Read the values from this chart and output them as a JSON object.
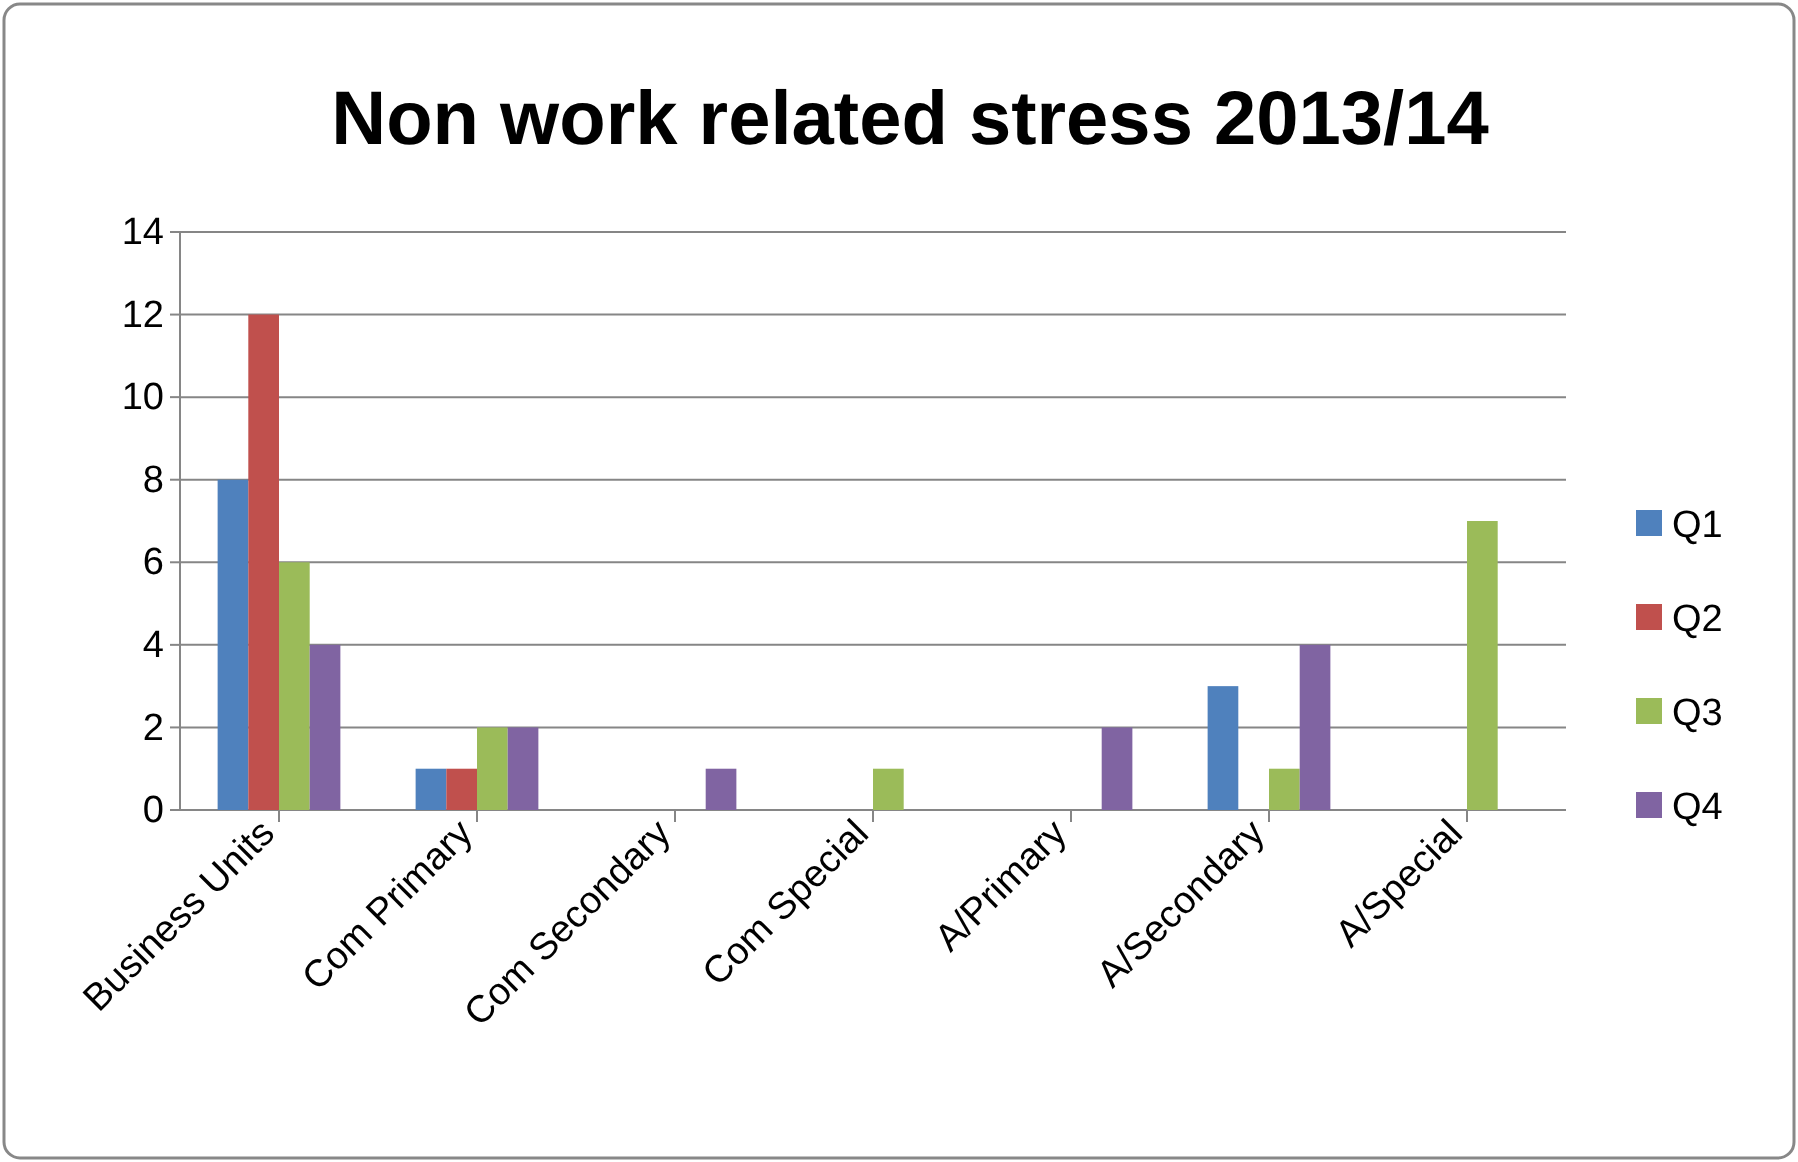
{
  "chart_data": {
    "type": "bar",
    "title": "Non work related stress 2013/14",
    "categories": [
      "Business Units",
      "Com  Primary",
      "Com Secondary",
      "Com Special",
      "A/Primary",
      "A/Secondary",
      "A/Special"
    ],
    "series": [
      {
        "name": "Q1",
        "color": "#4f81bd",
        "values": [
          8,
          1,
          0,
          0,
          0,
          3,
          0
        ]
      },
      {
        "name": "Q2",
        "color": "#c0504d",
        "values": [
          12,
          1,
          0,
          0,
          0,
          0,
          0
        ]
      },
      {
        "name": "Q3",
        "color": "#9bbb59",
        "values": [
          6,
          2,
          0,
          1,
          0,
          1,
          7
        ]
      },
      {
        "name": "Q4",
        "color": "#8064a2",
        "values": [
          4,
          2,
          1,
          0,
          2,
          4,
          0
        ]
      }
    ],
    "ylim": [
      0,
      14
    ],
    "yticks": [
      0,
      2,
      4,
      6,
      8,
      10,
      12,
      14
    ],
    "grid": "y",
    "legend": "right"
  }
}
